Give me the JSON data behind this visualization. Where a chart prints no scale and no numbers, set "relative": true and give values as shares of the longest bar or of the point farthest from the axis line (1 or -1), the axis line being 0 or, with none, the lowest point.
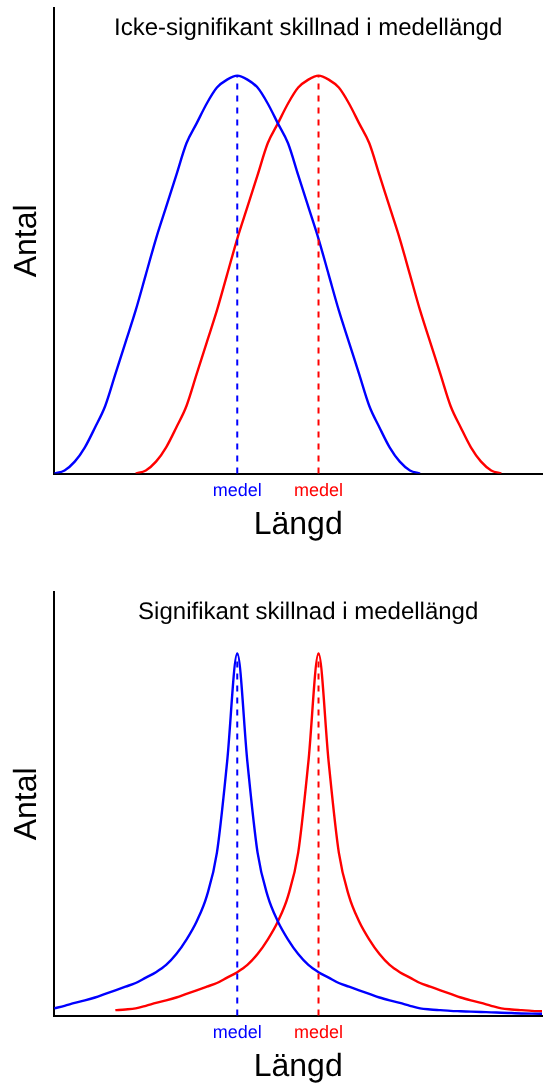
{
  "chart_data": [
    {
      "type": "line",
      "title": "Icke-signifikant skillnad i medellängd",
      "xlabel": "Längd",
      "ylabel": "Antal",
      "relative": true,
      "legend": false,
      "marker": "none",
      "categories": [
        null,
        null,
        null,
        null,
        null,
        null,
        null,
        null,
        null,
        null,
        null,
        null,
        null,
        null,
        null,
        null,
        null,
        null,
        null,
        null,
        null,
        null,
        null,
        null,
        null,
        null,
        null,
        null,
        null,
        null,
        null,
        null,
        null,
        null,
        null,
        null,
        null,
        null,
        null,
        null,
        null,
        null,
        null,
        null,
        null,
        null,
        null,
        null,
        null
      ],
      "series": [
        {
          "color": "#0000ff",
          "values": [
            0,
            0.008,
            0.03,
            0.066,
            0.116,
            0.17,
            0.25,
            0.33,
            0.41,
            0.5,
            0.59,
            0.67,
            0.75,
            0.83,
            0.88,
            0.93,
            0.97,
            0.99,
            1,
            0.99,
            0.97,
            0.93,
            0.88,
            0.83,
            0.75,
            0.67,
            0.59,
            0.5,
            0.41,
            0.33,
            0.25,
            0.17,
            0.116,
            0.066,
            0.03,
            0.008,
            0,
            null,
            null,
            null,
            null,
            null,
            null,
            null,
            null,
            null,
            null,
            null,
            null
          ]
        },
        {
          "color": "#ff0000",
          "values": [
            null,
            null,
            null,
            null,
            null,
            null,
            null,
            null,
            0,
            0.008,
            0.03,
            0.066,
            0.116,
            0.17,
            0.25,
            0.33,
            0.41,
            0.5,
            0.59,
            0.67,
            0.75,
            0.83,
            0.88,
            0.93,
            0.97,
            0.99,
            1,
            0.99,
            0.97,
            0.93,
            0.88,
            0.83,
            0.75,
            0.67,
            0.59,
            0.5,
            0.41,
            0.33,
            0.25,
            0.17,
            0.116,
            0.066,
            0.03,
            0.008,
            0,
            null,
            null,
            null,
            null
          ]
        }
      ],
      "annotations": [
        "medel",
        "medel"
      ]
    },
    {
      "type": "line",
      "title": "Signifikant skillnad i medellängd",
      "xlabel": "Längd",
      "ylabel": "Antal",
      "relative": true,
      "legend": false,
      "marker": "none",
      "categories": [
        null,
        null,
        null,
        null,
        null,
        null,
        null,
        null,
        null,
        null,
        null,
        null,
        null,
        null,
        null,
        null,
        null,
        null,
        null,
        null,
        null,
        null,
        null,
        null,
        null,
        null,
        null,
        null,
        null,
        null,
        null,
        null,
        null,
        null,
        null,
        null,
        null,
        null,
        null,
        null,
        null,
        null,
        null,
        null,
        null,
        null,
        null,
        null,
        null
      ],
      "series": [
        {
          "color": "#0000ff",
          "values": [
            0.02,
            0.027,
            0.035,
            0.042,
            0.05,
            0.06,
            0.07,
            0.08,
            0.09,
            0.105,
            0.12,
            0.14,
            0.17,
            0.21,
            0.26,
            0.33,
            0.45,
            0.7,
            1,
            0.7,
            0.45,
            0.33,
            0.26,
            0.21,
            0.17,
            0.14,
            0.12,
            0.105,
            0.09,
            0.08,
            0.07,
            0.06,
            0.05,
            0.042,
            0.035,
            0.027,
            0.02,
            0.017,
            0.015,
            0.013,
            0.012,
            0.011,
            0.01,
            0.009,
            0.008,
            0.007,
            0.006,
            0.0055,
            0.005
          ]
        },
        {
          "color": "#ff0000",
          "values": [
            null,
            null,
            null,
            null,
            null,
            null,
            0.015,
            0.017,
            0.02,
            0.027,
            0.035,
            0.042,
            0.05,
            0.06,
            0.07,
            0.08,
            0.09,
            0.105,
            0.12,
            0.14,
            0.17,
            0.21,
            0.26,
            0.33,
            0.45,
            0.7,
            1,
            0.7,
            0.45,
            0.33,
            0.26,
            0.21,
            0.17,
            0.14,
            0.12,
            0.105,
            0.09,
            0.08,
            0.07,
            0.06,
            0.05,
            0.042,
            0.035,
            0.027,
            0.02,
            0.017,
            0.015,
            0.013,
            0.012
          ]
        }
      ],
      "annotations": [
        "medel",
        "medel"
      ]
    }
  ]
}
